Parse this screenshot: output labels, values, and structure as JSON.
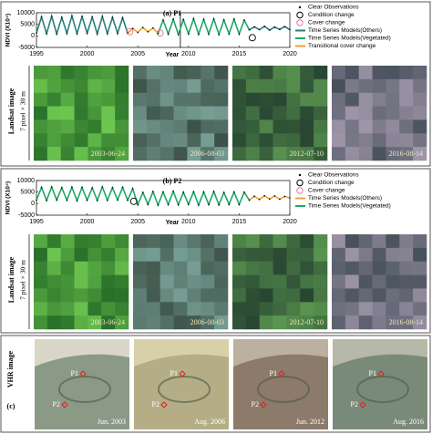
{
  "chart_data": [
    {
      "type": "line",
      "title": "(a) P1",
      "y_label": "NDVI (X10⁴)",
      "x_label": "Year",
      "x": [
        1995,
        1995.5,
        1996,
        1996.5,
        1997,
        1997.5,
        1998,
        1998.5,
        1999,
        1999.5,
        2000,
        2000.5,
        2001,
        2001.5,
        2002,
        2002.5,
        2003,
        2003.5,
        2004,
        2004.5,
        2005,
        2005.5,
        2006,
        2006.5,
        2007,
        2007.5,
        2008,
        2008.5,
        2009,
        2009.5,
        2010,
        2010.5,
        2011,
        2011.5,
        2012,
        2012.5,
        2013,
        2013.5,
        2014,
        2014.5,
        2015,
        2015.5,
        2016,
        2016.5,
        2017,
        2017.5,
        2018,
        2018.5,
        2019,
        2019.5,
        2020
      ],
      "series": [
        {
          "name": "Time Series Models(Others)",
          "color": "#2a7f78",
          "values": [
            1200,
            8200,
            1000,
            8500,
            900,
            8000,
            1100,
            8600,
            1000,
            8300,
            1200,
            8100,
            900,
            8400,
            1000,
            8000,
            1100,
            7800,
            1200,
            null,
            null,
            null,
            null,
            null,
            null,
            null,
            null,
            null,
            null,
            null,
            null,
            null,
            null,
            null,
            null,
            null,
            null,
            null,
            null,
            null,
            null,
            null,
            2600,
            3900,
            2700,
            4100,
            2500,
            3800,
            2800,
            4000,
            2700
          ]
        },
        {
          "name": "Time Series Models(Vegetated)",
          "color": "#1fa868",
          "values": [
            null,
            null,
            null,
            null,
            null,
            null,
            null,
            null,
            null,
            null,
            null,
            null,
            null,
            null,
            null,
            null,
            null,
            null,
            null,
            null,
            null,
            null,
            null,
            null,
            1000,
            6800,
            800,
            7200,
            600,
            7000,
            900,
            7400,
            700,
            7100,
            800,
            7300,
            600,
            6900,
            900,
            7200,
            800,
            6800,
            2600,
            null,
            null,
            null,
            null,
            null,
            null,
            null,
            null
          ]
        },
        {
          "name": "Transitional cover change",
          "color": "#f0a030",
          "values": [
            null,
            null,
            null,
            null,
            null,
            null,
            null,
            null,
            null,
            null,
            null,
            null,
            null,
            null,
            null,
            null,
            null,
            null,
            1200,
            3200,
            1500,
            3600,
            1800,
            3400,
            1000,
            null,
            null,
            null,
            null,
            null,
            null,
            null,
            null,
            null,
            null,
            null,
            null,
            null,
            null,
            null,
            null,
            null,
            null,
            null,
            null,
            null,
            null,
            null,
            null,
            null,
            null
          ]
        }
      ],
      "observations_label": "Clear Observations",
      "condition_label": "Condition change",
      "cover_label": "Cover change",
      "condition_changes": [
        {
          "x": 2016.3,
          "y": -800
        }
      ],
      "cover_changes": [
        {
          "x": 2004.2,
          "y": 1800
        },
        {
          "x": 2007.2,
          "y": 1200
        }
      ],
      "vertical_lines": [
        2009.2
      ],
      "xlim": [
        1995,
        2020
      ],
      "xticks": [
        1995,
        2000,
        2005,
        2010,
        2015,
        2020
      ],
      "ylim": [
        -5000,
        10000
      ],
      "yticks": [
        -5000,
        0,
        5000,
        10000
      ]
    },
    {
      "type": "line",
      "title": "(b) P2",
      "y_label": "NDVI (X10⁴)",
      "x_label": "Year",
      "x": [
        1995,
        1995.5,
        1996,
        1996.5,
        1997,
        1997.5,
        1998,
        1998.5,
        1999,
        1999.5,
        2000,
        2000.5,
        2001,
        2001.5,
        2002,
        2002.5,
        2003,
        2003.5,
        2004,
        2004.5,
        2005,
        2005.5,
        2006,
        2006.5,
        2007,
        2007.5,
        2008,
        2008.5,
        2009,
        2009.5,
        2010,
        2010.5,
        2011,
        2011.5,
        2012,
        2012.5,
        2013,
        2013.5,
        2014,
        2014.5,
        2015,
        2015.5,
        2016,
        2016.5,
        2017,
        2017.5,
        2018,
        2018.5,
        2019,
        2019.5,
        2020
      ],
      "series": [
        {
          "name": "Time Series Models(Others)",
          "color": "#f0a030",
          "values": [
            null,
            null,
            null,
            null,
            null,
            null,
            null,
            null,
            null,
            null,
            null,
            null,
            null,
            null,
            null,
            null,
            null,
            null,
            null,
            null,
            null,
            null,
            null,
            null,
            null,
            null,
            null,
            null,
            null,
            null,
            null,
            null,
            null,
            null,
            null,
            null,
            null,
            null,
            null,
            null,
            null,
            null,
            1500,
            3200,
            1800,
            3400,
            2000,
            3300,
            1900,
            3100,
            2500
          ]
        },
        {
          "name": "Time Series Models(Vegetated)",
          "color": "#1fa868",
          "values": [
            1500,
            7000,
            1400,
            7200,
            1600,
            6900,
            1500,
            7100,
            1300,
            7000,
            1500,
            6800,
            1400,
            7200,
            1500,
            6900,
            1600,
            7000,
            1500,
            6500,
            -500,
            4800,
            -300,
            5200,
            -600,
            5000,
            -400,
            5300,
            -500,
            4900,
            -300,
            5100,
            -600,
            5000,
            -400,
            5200,
            -500,
            4800,
            -300,
            5000,
            -400,
            4900,
            1500,
            null,
            null,
            null,
            null,
            null,
            null,
            null,
            null
          ]
        }
      ],
      "observations_label": "Clear Observations",
      "condition_label": "Condition change",
      "cover_label": "Cover change",
      "condition_changes": [
        {
          "x": 2004.6,
          "y": 1000
        }
      ],
      "cover_changes": [],
      "vertical_lines": [],
      "xlim": [
        1995,
        2020
      ],
      "xticks": [
        1995,
        2000,
        2005,
        2010,
        2015,
        2020
      ],
      "ylim": [
        -5000,
        10000
      ],
      "yticks": [
        -5000,
        0,
        5000,
        10000
      ]
    }
  ],
  "landsat": [
    {
      "label": "Landsat image",
      "sublabel": "7 pixel × 30 m",
      "dates": [
        "2003-06-24",
        "2006-08-03",
        "2012-07-10",
        "2016-08-14"
      ]
    },
    {
      "label": "Landsat image",
      "sublabel": "7 pixel × 30 m",
      "dates": [
        "2003-06-24",
        "2006-08-03",
        "2012-07-10",
        "2016-08-14"
      ]
    }
  ],
  "vhr": {
    "panel": "(c)",
    "label": "VHR image",
    "points": [
      "P1",
      "P2"
    ],
    "dates": [
      "Jun. 2003",
      "Aug. 2006",
      "Jun. 2012",
      "Aug. 2016"
    ]
  }
}
